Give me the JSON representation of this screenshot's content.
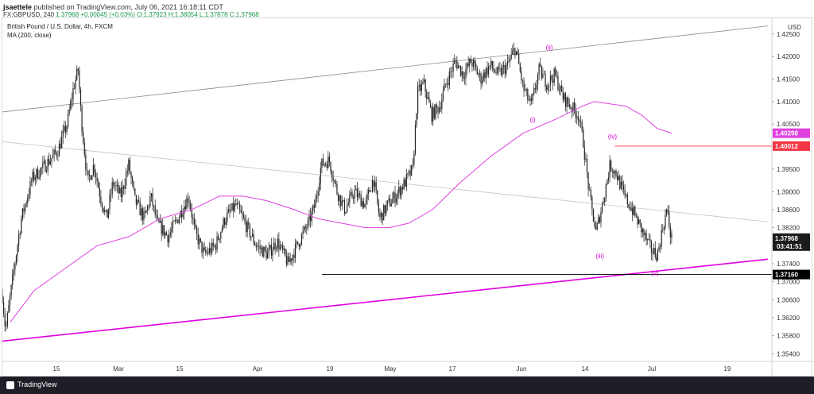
{
  "header": {
    "author": "jsaettele",
    "published_text": "published on TradingView.com, July 06, 2021 16:18:11 CDT",
    "symbol_line": "FX:GBPUSD, 240",
    "last": "1.37968",
    "change": "+0.00045 (+0.03%)",
    "open": "O:1.37923",
    "high": "H:1.38054",
    "low": "L:1.37878",
    "close": "C:1.37968"
  },
  "legend": {
    "title": "British Pound / U.S. Dollar, 4h, FXCM",
    "ma": "MA (200, close)"
  },
  "footer": {
    "brand": "TradingView"
  },
  "colors": {
    "candle": "#222222",
    "ma": "#e040e0",
    "support": "#e000e0",
    "level_red": "#f23645",
    "level_black": "#000000",
    "pink_tag": "#e040e0"
  },
  "chart_data": {
    "type": "candlestick",
    "currency_label": "USD",
    "ylim": [
      1.3523,
      1.4285
    ],
    "y_ticks": [
      "1.42500",
      "1.42000",
      "1.41500",
      "1.41000",
      "1.40500",
      "1.39500",
      "1.39000",
      "1.38600",
      "1.38200",
      "1.37400",
      "1.37000",
      "1.36600",
      "1.36200",
      "1.35800",
      "1.35400"
    ],
    "x_ticks": [
      "15",
      "Mar",
      "15",
      "Apr",
      "19",
      "May",
      "17",
      "Jun",
      "14",
      "Jul",
      "19"
    ],
    "price_path": [
      [
        0,
        1.367
      ],
      [
        4,
        1.359
      ],
      [
        14,
        1.372
      ],
      [
        24,
        1.384
      ],
      [
        38,
        1.393
      ],
      [
        55,
        1.396
      ],
      [
        70,
        1.399
      ],
      [
        82,
        1.405
      ],
      [
        90,
        1.413
      ],
      [
        96,
        1.417
      ],
      [
        100,
        1.406
      ],
      [
        108,
        1.392
      ],
      [
        116,
        1.396
      ],
      [
        124,
        1.389
      ],
      [
        132,
        1.384
      ],
      [
        140,
        1.392
      ],
      [
        150,
        1.389
      ],
      [
        160,
        1.396
      ],
      [
        168,
        1.388
      ],
      [
        180,
        1.384
      ],
      [
        188,
        1.389
      ],
      [
        196,
        1.383
      ],
      [
        210,
        1.38
      ],
      [
        222,
        1.384
      ],
      [
        236,
        1.389
      ],
      [
        244,
        1.381
      ],
      [
        256,
        1.376
      ],
      [
        270,
        1.378
      ],
      [
        282,
        1.384
      ],
      [
        296,
        1.387
      ],
      [
        310,
        1.382
      ],
      [
        322,
        1.378
      ],
      [
        336,
        1.376
      ],
      [
        348,
        1.379
      ],
      [
        362,
        1.374
      ],
      [
        376,
        1.379
      ],
      [
        388,
        1.383
      ],
      [
        396,
        1.387
      ],
      [
        404,
        1.396
      ],
      [
        414,
        1.397
      ],
      [
        424,
        1.39
      ],
      [
        434,
        1.386
      ],
      [
        446,
        1.39
      ],
      [
        460,
        1.387
      ],
      [
        470,
        1.393
      ],
      [
        478,
        1.384
      ],
      [
        488,
        1.387
      ],
      [
        498,
        1.389
      ],
      [
        510,
        1.392
      ],
      [
        520,
        1.395
      ],
      [
        526,
        1.412
      ],
      [
        534,
        1.414
      ],
      [
        544,
        1.407
      ],
      [
        554,
        1.409
      ],
      [
        562,
        1.414
      ],
      [
        574,
        1.419
      ],
      [
        584,
        1.416
      ],
      [
        594,
        1.419
      ],
      [
        606,
        1.415
      ],
      [
        618,
        1.418
      ],
      [
        628,
        1.416
      ],
      [
        640,
        1.418
      ],
      [
        650,
        1.422
      ],
      [
        660,
        1.413
      ],
      [
        670,
        1.409
      ],
      [
        680,
        1.417
      ],
      [
        690,
        1.414
      ],
      [
        700,
        1.416
      ],
      [
        710,
        1.411
      ],
      [
        720,
        1.409
      ],
      [
        730,
        1.407
      ],
      [
        736,
        1.401
      ],
      [
        744,
        1.389
      ],
      [
        752,
        1.381
      ],
      [
        760,
        1.387
      ],
      [
        770,
        1.396
      ],
      [
        778,
        1.394
      ],
      [
        788,
        1.389
      ],
      [
        798,
        1.386
      ],
      [
        806,
        1.383
      ],
      [
        814,
        1.38
      ],
      [
        822,
        1.377
      ],
      [
        830,
        1.376
      ],
      [
        838,
        1.383
      ],
      [
        842,
        1.386
      ],
      [
        846,
        1.381
      ],
      [
        849,
        1.379
      ]
    ],
    "ma200_path": [
      [
        10,
        1.361
      ],
      [
        40,
        1.368
      ],
      [
        80,
        1.373
      ],
      [
        120,
        1.378
      ],
      [
        160,
        1.38
      ],
      [
        200,
        1.384
      ],
      [
        240,
        1.386
      ],
      [
        275,
        1.389
      ],
      [
        305,
        1.389
      ],
      [
        335,
        1.388
      ],
      [
        370,
        1.386
      ],
      [
        400,
        1.384
      ],
      [
        430,
        1.383
      ],
      [
        460,
        1.382
      ],
      [
        490,
        1.382
      ],
      [
        515,
        1.383
      ],
      [
        545,
        1.386
      ],
      [
        580,
        1.392
      ],
      [
        620,
        1.398
      ],
      [
        660,
        1.403
      ],
      [
        700,
        1.406
      ],
      [
        735,
        1.409
      ],
      [
        750,
        1.41
      ],
      [
        790,
        1.409
      ],
      [
        810,
        1.407
      ],
      [
        830,
        1.404
      ],
      [
        848,
        1.403
      ]
    ],
    "wave_labels": [
      {
        "text": "(i)",
        "x": 672,
        "y": 1.4055
      },
      {
        "text": "(ii)",
        "x": 693,
        "y": 1.4215
      },
      {
        "text": "(iii)",
        "x": 757,
        "y": 1.3752
      },
      {
        "text": "(iv)",
        "x": 773,
        "y": 1.4018
      },
      {
        "text": "(v)",
        "x": 827,
        "y": 1.3714
      }
    ],
    "levels": [
      {
        "price": 1.40012,
        "label": "1.40012",
        "from_x": 776,
        "style": "red"
      },
      {
        "price": 1.3716,
        "label": "1.37160",
        "from_x": 405,
        "style": "black"
      }
    ],
    "price_tags": [
      {
        "price": 1.40298,
        "label": "1.40298",
        "style": "pink"
      },
      {
        "price": 1.37968,
        "label": "1.37968",
        "style": "dark",
        "extra": "03:41:51"
      }
    ],
    "trendlines": [
      {
        "from": [
          0,
          1.4077
        ],
        "to": [
          970,
          1.4268
        ],
        "style": "gray"
      },
      {
        "from": [
          0,
          1.4011
        ],
        "to": [
          970,
          1.3833
        ],
        "style": "lightgray"
      },
      {
        "from": [
          0,
          1.3568
        ],
        "to": [
          970,
          1.375
        ],
        "style": "magenta"
      }
    ]
  }
}
